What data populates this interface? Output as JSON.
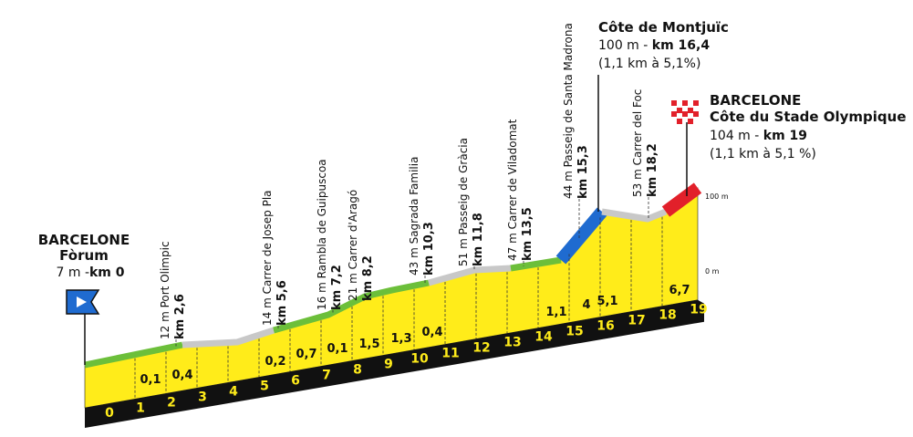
{
  "start": {
    "city": "BARCELONE",
    "place": "Fòrum",
    "altitude": "7 m - ",
    "km": "km 0"
  },
  "climb": {
    "name": "Côte de Montjuïc",
    "altitude": "100 m - ",
    "km": "km 16,4",
    "detail": "(1,1 km à 5,1%)"
  },
  "finish": {
    "city": "BARCELONE",
    "place": "Côte du Stade Olympique",
    "altitude": "104 m - ",
    "km": "km 19",
    "detail": "(1,1 km à 5,1 %)"
  },
  "scale": [
    "100 m",
    "0 m"
  ],
  "waypoints": [
    {
      "name": "12 m Port Olimpic",
      "km": "km 2,6"
    },
    {
      "name": "14 m Carrer de Josep Pla",
      "km": "km 5,6"
    },
    {
      "name": "16 m Rambla de Guipuscoa",
      "km": "km 7,2"
    },
    {
      "name": "21 m Carrer d'Aragó",
      "km": "km 8,2"
    },
    {
      "name": "43 m Sagrada Familia",
      "km": "km 10,3"
    },
    {
      "name": "51 m Passeig de Gràcia",
      "km": "km 11,8"
    },
    {
      "name": "47 m Carrer de Viladomat",
      "km": "km 13,5"
    },
    {
      "name": "44 m Passeig de Santa Madrona",
      "km": "km 15,3"
    },
    {
      "name": "53 m Carrer del Foc",
      "km": "km 18,2"
    }
  ],
  "km_markers": [
    "0",
    "1",
    "2",
    "3",
    "4",
    "5",
    "6",
    "7",
    "8",
    "9",
    "10",
    "11",
    "12",
    "13",
    "14",
    "15",
    "16",
    "17",
    "18",
    "19"
  ],
  "gradients": [
    "0,1",
    "0,4",
    "0,2",
    "0,7",
    "0,1",
    "1,5",
    "1,3",
    "0,4",
    "1,1",
    "4",
    "5,1",
    "6,7"
  ]
}
